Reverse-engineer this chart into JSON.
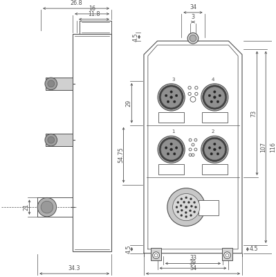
{
  "bg_color": "#ffffff",
  "line_color": "#505050",
  "dim_color": "#505050",
  "fig_width": 3.99,
  "fig_height": 4.0,
  "dpi": 100
}
